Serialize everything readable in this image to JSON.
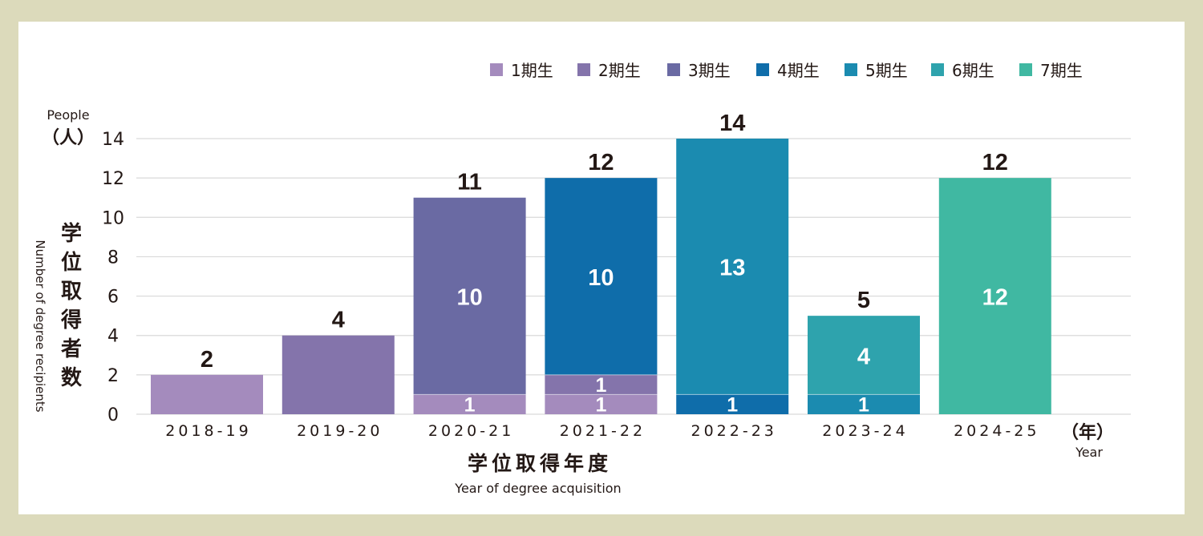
{
  "chart_data": {
    "type": "bar",
    "stacked": true,
    "categories": [
      "2018-19",
      "2019-20",
      "2020-21",
      "2021-22",
      "2022-23",
      "2023-24",
      "2024-25"
    ],
    "series": [
      {
        "name": "1期生",
        "color": "#a48bbd",
        "values": [
          2,
          0,
          1,
          1,
          0,
          0,
          0
        ]
      },
      {
        "name": "2期生",
        "color": "#8474ab",
        "values": [
          0,
          4,
          0,
          1,
          0,
          0,
          0
        ]
      },
      {
        "name": "3期生",
        "color": "#6a6aa3",
        "values": [
          0,
          0,
          10,
          0,
          0,
          0,
          0
        ]
      },
      {
        "name": "4期生",
        "color": "#0f6daa",
        "values": [
          0,
          0,
          0,
          10,
          1,
          0,
          0
        ]
      },
      {
        "name": "5期生",
        "color": "#1b8bb0",
        "values": [
          0,
          0,
          0,
          0,
          13,
          1,
          0
        ]
      },
      {
        "name": "6期生",
        "color": "#2ea3ad",
        "values": [
          0,
          0,
          0,
          0,
          0,
          4,
          0
        ]
      },
      {
        "name": "7期生",
        "color": "#40b8a2",
        "values": [
          0,
          0,
          0,
          0,
          0,
          0,
          12
        ]
      }
    ],
    "totals": [
      2,
      4,
      11,
      12,
      14,
      5,
      12
    ],
    "segment_label_display": [
      "",
      "",
      "1",
      "1",
      "1",
      "1",
      "1",
      "1",
      "10",
      "10",
      "13",
      "4",
      "12"
    ],
    "ylim": [
      0,
      14
    ],
    "yticks": [
      "0",
      "2",
      "4",
      "6",
      "8",
      "10",
      "12",
      "14"
    ],
    "y_unit_en": "People",
    "y_unit_ja": "（人）",
    "ylabel_ja": "学位取得者数",
    "ylabel_en": "Number of degree recipients",
    "xlabel_ja": "学位取得年度",
    "xlabel_en": "Year of degree acquisition",
    "x_unit_ja": "（年）",
    "x_unit_en": "Year",
    "legend_position": "top-right",
    "grid": true
  },
  "colors": {
    "background": "#dcdabb",
    "panel": "#ffffff",
    "grid": "#d9d9d9",
    "text": "#231815"
  }
}
